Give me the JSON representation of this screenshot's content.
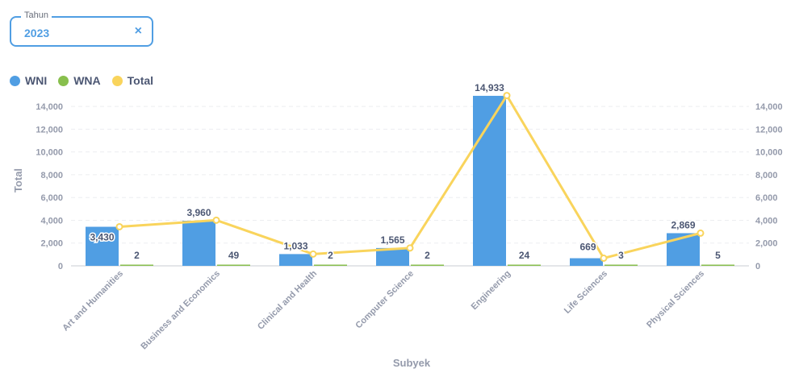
{
  "filter": {
    "label": "Tahun",
    "value": "2023",
    "clear_icon": "×"
  },
  "colors": {
    "wni": "#509ee3",
    "wna": "#88bf4d",
    "total": "#f9d45c"
  },
  "chart_data": {
    "type": "bar",
    "categories": [
      "Art and Humanities",
      "Business and Economics",
      "Clinical and Health",
      "Computer Science",
      "Engineering",
      "Life Sciences",
      "Physical Sciences"
    ],
    "series": [
      {
        "name": "WNI",
        "type": "bar",
        "values": [
          3430,
          3960,
          1033,
          1565,
          14933,
          669,
          2869
        ]
      },
      {
        "name": "WNA",
        "type": "bar",
        "values": [
          2,
          49,
          2,
          2,
          24,
          3,
          5
        ]
      },
      {
        "name": "Total",
        "type": "line",
        "values": [
          3432,
          4009,
          1035,
          1567,
          14957,
          672,
          2874
        ]
      }
    ],
    "bar_labels": {
      "WNI": [
        "3,430",
        "3,960",
        "1,033",
        "1,565",
        "14,933",
        "669",
        "2,869"
      ],
      "WNA": [
        "2",
        "49",
        "2",
        "2",
        "24",
        "3",
        "5"
      ]
    },
    "yticks": [
      "0",
      "2,000",
      "4,000",
      "6,000",
      "8,000",
      "10,000",
      "12,000",
      "14,000"
    ],
    "ylim": [
      0,
      15000
    ],
    "xlabel": "Subyek",
    "ylabel": "Total",
    "legend_position": "top-left",
    "grid": true
  }
}
